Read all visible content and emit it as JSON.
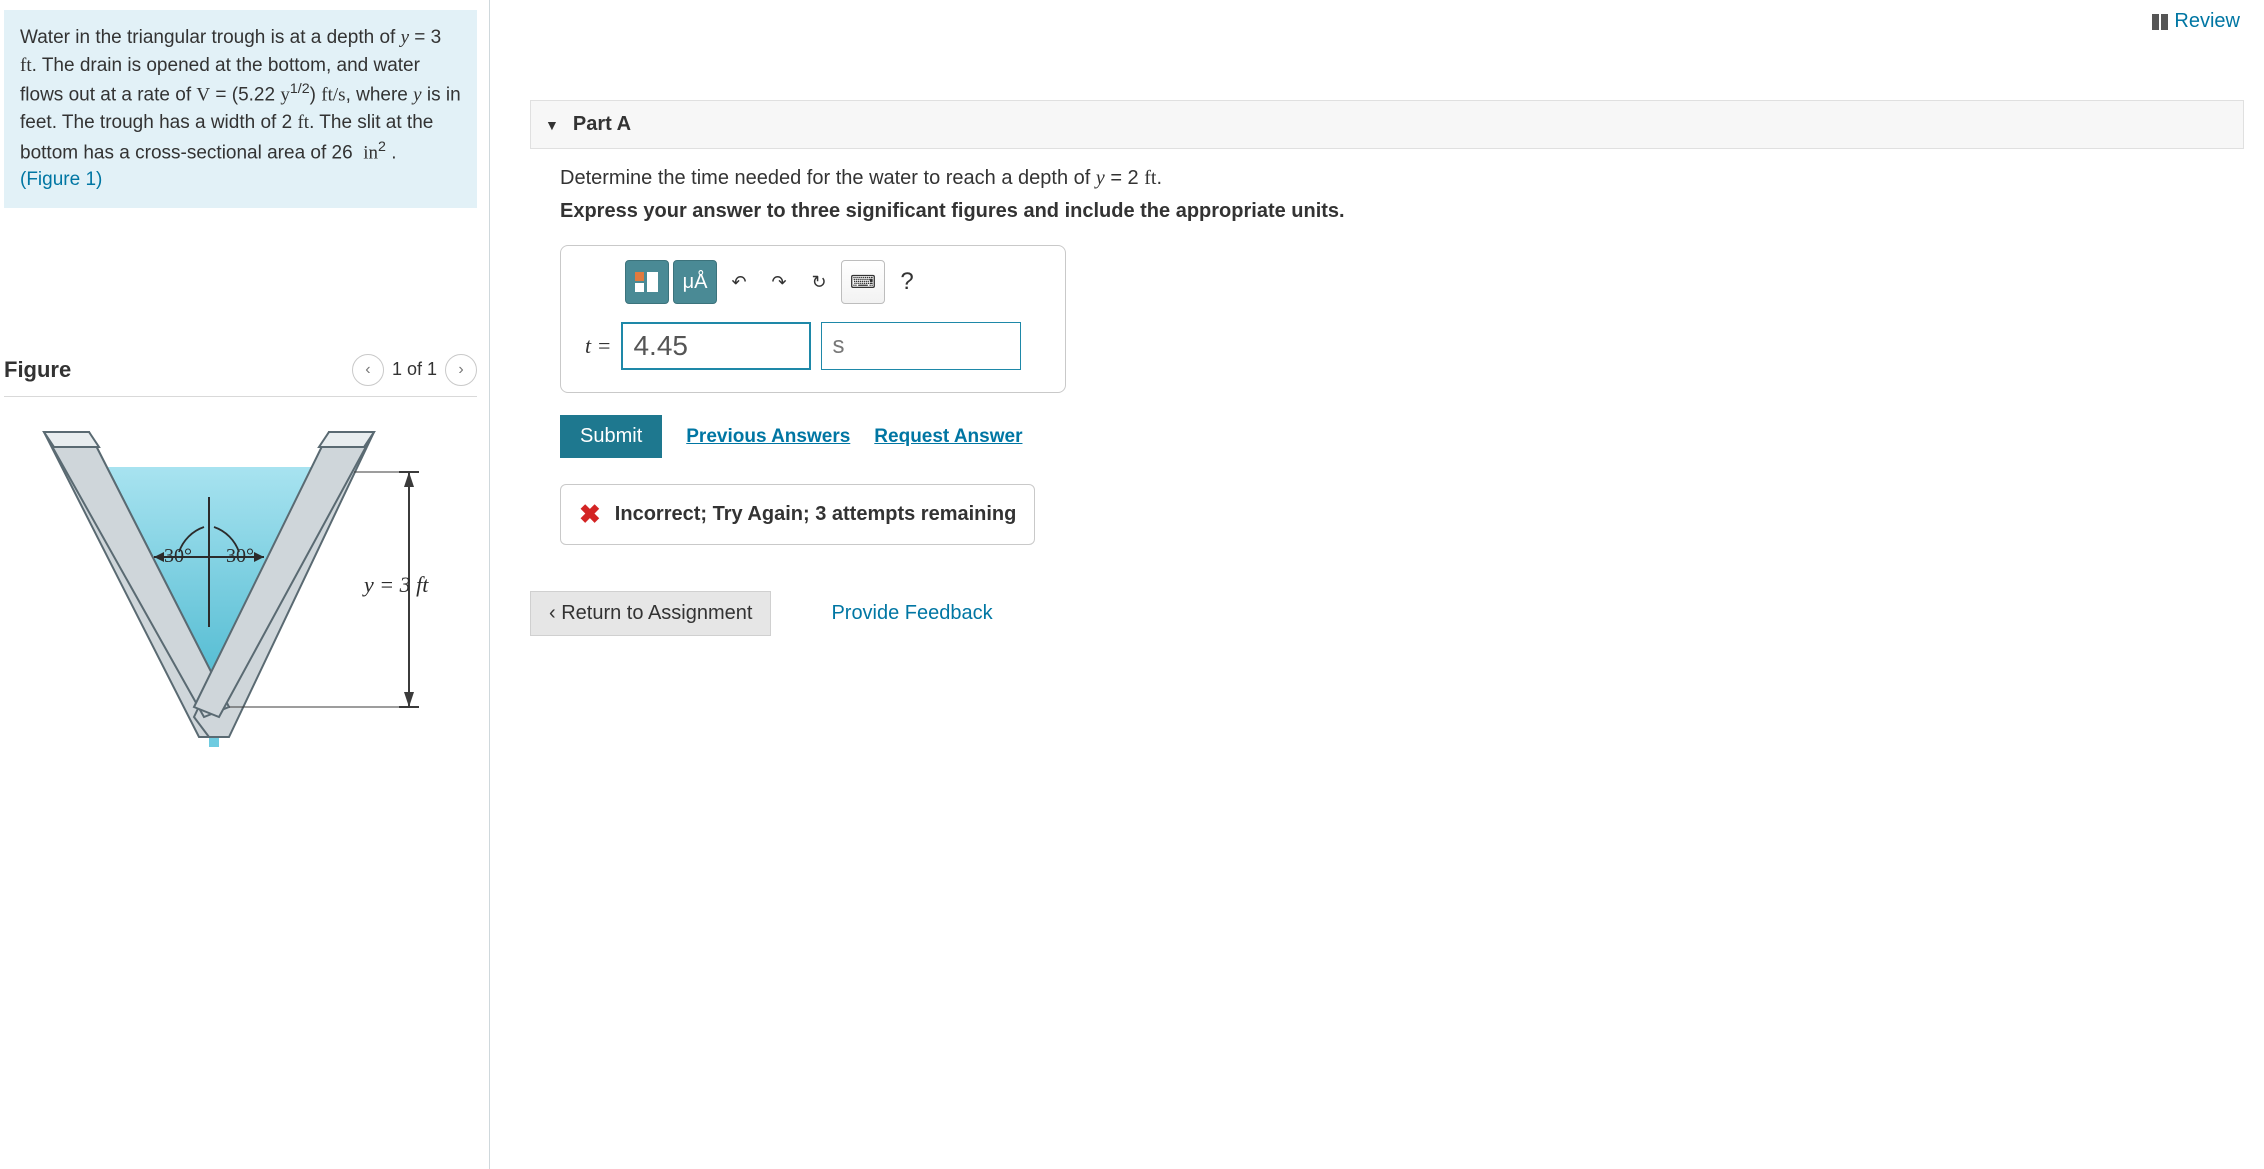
{
  "problem": {
    "html": "Water in the triangular trough is at a depth of <span class='mi'>y</span> = 3 <span class='rm'>ft</span>. The drain is opened at the bottom, and water flows out at a rate of <span class='rm'>V</span> = (5.22 <span class='rm'>y</span><sup>1/2</sup>) <span class='rm'>ft/s</span>, where <span class='mi'>y</span> is in feet. The trough has a width of 2 <span class='rm'>ft</span>. The slit at the bottom has a cross-sectional area of 26&nbsp; <span class='rm'>in</span><sup>2</sup> . <span class='fig-link'>(Figure 1)</span>"
  },
  "figure": {
    "title": "Figure",
    "counter": "1 of 1",
    "angle_left": "30°",
    "angle_right": "30°",
    "depth_label": "y = 3 ft",
    "colors": {
      "wall_fill": "#cfd6da",
      "wall_stroke": "#5a6a72",
      "water_top": "#a8e3f0",
      "water_bottom": "#4db9d0",
      "stream": "#6ecbe0",
      "dim_stroke": "#3b3b3b"
    }
  },
  "review_label": "Review",
  "part": {
    "label": "Part A"
  },
  "question": {
    "text_html": "Determine the time needed for the water to reach a depth of <span class='mi'>y</span> = 2 <span class='rm'>ft</span>.",
    "instruction": "Express your answer to three significant figures and include the appropriate units."
  },
  "toolbar": {
    "templates_label": "Templates",
    "symbols_label": "μÅ",
    "undo": "↶",
    "redo": "↷",
    "reset": "↻",
    "keyboard": "⌨",
    "help": "?"
  },
  "answer": {
    "lhs": "t = ",
    "value": "4.45",
    "unit": "s"
  },
  "actions": {
    "submit": "Submit",
    "previous": "Previous Answers",
    "request": "Request Answer"
  },
  "feedback": {
    "text": "Incorrect; Try Again; 3 attempts remaining"
  },
  "bottom": {
    "return": "Return to Assignment",
    "provide": "Provide Feedback"
  }
}
